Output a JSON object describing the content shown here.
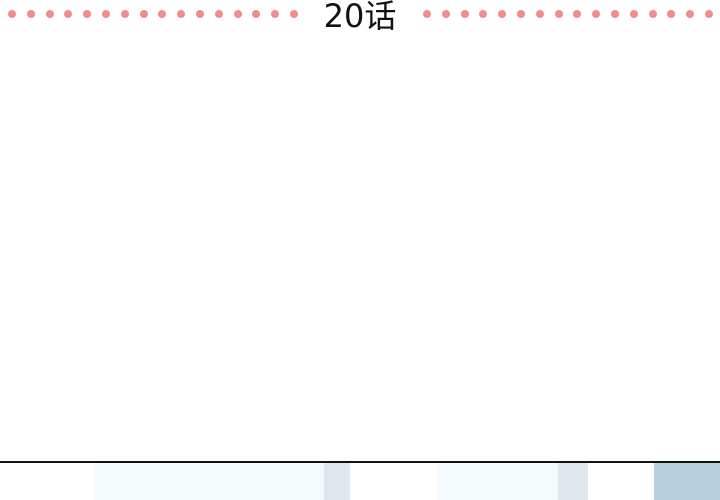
{
  "chapter": {
    "title": "20话"
  },
  "colors": {
    "dot": "#f28b8b",
    "title_text": "#111111",
    "panel_border": "#121212",
    "window_light": "#f4fafc",
    "window_frame": "#dfe6ec",
    "sky_blue": "#b7cfdc"
  },
  "decor": {
    "left_dot_count": 16,
    "right_dot_count": 16
  }
}
